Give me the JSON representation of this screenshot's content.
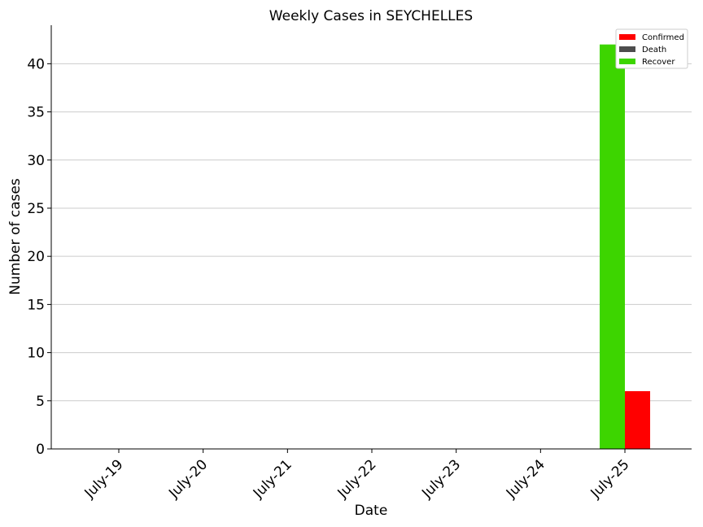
{
  "chart_data": {
    "type": "bar",
    "title": "Weekly Cases in SEYCHELLES",
    "xlabel": "Date",
    "ylabel": "Number of cases",
    "categories": [
      "July-19",
      "July-20",
      "July-21",
      "July-22",
      "July-23",
      "July-24",
      "July-25"
    ],
    "series": [
      {
        "name": "Confirmed",
        "color": "#ff0000",
        "values": [
          0,
          0,
          0,
          0,
          0,
          0,
          6
        ]
      },
      {
        "name": "Death",
        "color": "#4d4d4d",
        "values": [
          0,
          0,
          0,
          0,
          0,
          0,
          0
        ]
      },
      {
        "name": "Recover",
        "color": "#3dd500",
        "values": [
          0,
          0,
          0,
          0,
          0,
          0,
          42
        ]
      }
    ],
    "ylim": [
      0,
      44
    ],
    "yticks": [
      0,
      5,
      10,
      15,
      20,
      25,
      30,
      35,
      40
    ],
    "grid": "horizontal",
    "legend_position": "top-right"
  }
}
